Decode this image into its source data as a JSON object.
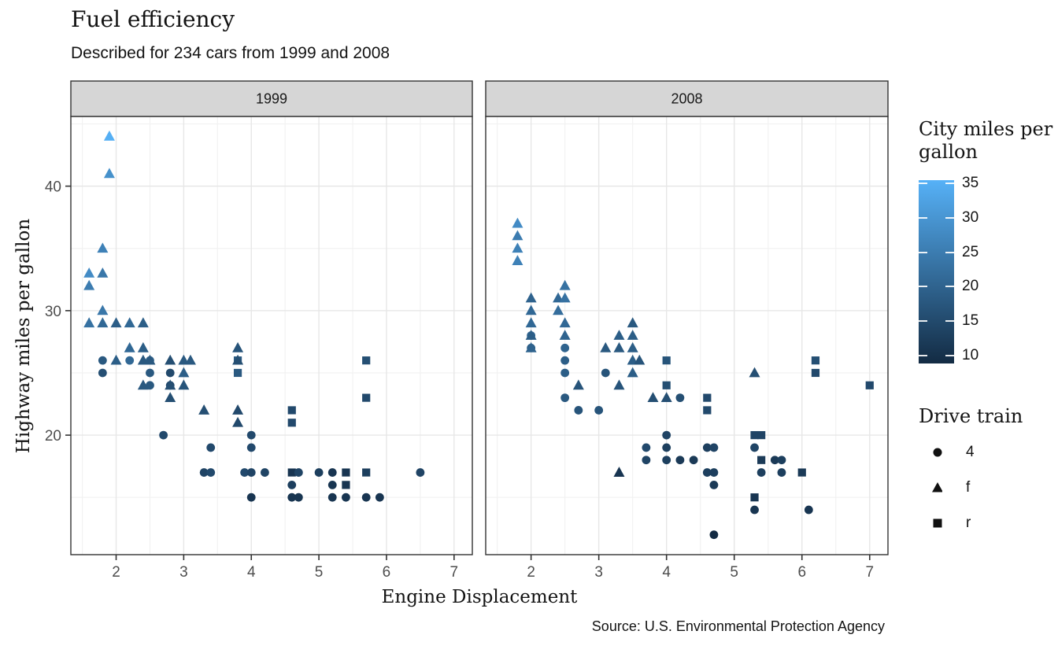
{
  "title": "Fuel efficiency",
  "subtitle": "Described for 234 cars from 1999 and 2008",
  "caption": "Source: U.S. Environmental Protection Agency",
  "chart_data": {
    "type": "scatter",
    "xlabel": "Engine Displacement",
    "ylabel": "Highway miles per gallon",
    "xlim": [
      1.33,
      7.27
    ],
    "ylim": [
      10.4,
      45.6
    ],
    "x_ticks": [
      2,
      3,
      4,
      5,
      6,
      7
    ],
    "x_minor": [
      1.5,
      2.5,
      3.5,
      4.5,
      5.5,
      6.5
    ],
    "y_ticks": [
      20,
      30,
      40
    ],
    "y_minor": [
      15,
      25,
      35,
      45
    ],
    "grid": "on",
    "colors": {
      "strip_bg": "#D6D6D6",
      "panel_border": "#333333",
      "grid_major": "#E7E7E7",
      "grid_minor": "#F2F2F2",
      "tick_label": "#4D4D4D",
      "tick_mark": "#333333",
      "shape_glyph": "#111111"
    },
    "color_legend": {
      "title": "City miles per gallon",
      "low": "#132B43",
      "high": "#56B1F7",
      "domain": [
        9,
        35.4
      ],
      "ticks": [
        35,
        30,
        25,
        20,
        15,
        10
      ]
    },
    "shape_legend": {
      "title": "Drive train",
      "items": [
        {
          "shape": "circle",
          "label": "4"
        },
        {
          "shape": "triangle",
          "label": "f"
        },
        {
          "shape": "square",
          "label": "r"
        }
      ]
    },
    "facets": [
      {
        "label": "1999",
        "series": [
          {
            "drv": "f",
            "shape": "triangle",
            "points": [
              [
                1.9,
                44,
                35
              ],
              [
                1.9,
                41,
                29
              ],
              [
                1.8,
                35,
                26
              ],
              [
                1.6,
                33,
                28
              ],
              [
                1.8,
                33,
                24
              ],
              [
                1.6,
                32,
                25
              ],
              [
                1.8,
                30,
                24
              ],
              [
                1.6,
                29,
                23
              ],
              [
                1.8,
                29,
                21
              ],
              [
                2.0,
                29,
                19
              ],
              [
                2.2,
                29,
                21
              ],
              [
                2.4,
                29,
                19
              ],
              [
                2.2,
                27,
                21
              ],
              [
                2.4,
                27,
                19
              ],
              [
                3.8,
                27,
                17
              ],
              [
                2.0,
                26,
                19
              ],
              [
                2.4,
                26,
                18
              ],
              [
                2.5,
                26,
                18
              ],
              [
                2.8,
                26,
                16
              ],
              [
                3.0,
                26,
                18
              ],
              [
                3.1,
                26,
                18
              ],
              [
                3.8,
                26,
                16
              ],
              [
                3.0,
                25,
                19
              ],
              [
                2.4,
                24,
                18
              ],
              [
                2.8,
                24,
                16
              ],
              [
                3.0,
                24,
                17
              ],
              [
                2.8,
                23,
                16
              ],
              [
                3.3,
                22,
                16
              ],
              [
                3.8,
                22,
                15
              ],
              [
                3.8,
                21,
                15
              ]
            ]
          },
          {
            "drv": "4",
            "shape": "circle",
            "points": [
              [
                1.8,
                26,
                18
              ],
              [
                2.2,
                26,
                21
              ],
              [
                2.5,
                26,
                19
              ],
              [
                1.8,
                25,
                16
              ],
              [
                2.5,
                25,
                18
              ],
              [
                2.8,
                25,
                15
              ],
              [
                2.5,
                24,
                18
              ],
              [
                2.8,
                24,
                15
              ],
              [
                2.7,
                20,
                15
              ],
              [
                4.0,
                20,
                15
              ],
              [
                3.4,
                19,
                15
              ],
              [
                4.0,
                19,
                15
              ],
              [
                3.3,
                17,
                14
              ],
              [
                3.4,
                17,
                15
              ],
              [
                3.9,
                17,
                15
              ],
              [
                4.0,
                17,
                14
              ],
              [
                4.2,
                17,
                14
              ],
              [
                4.7,
                17,
                14
              ],
              [
                5.0,
                17,
                13
              ],
              [
                5.2,
                17,
                11
              ],
              [
                6.5,
                17,
                14
              ],
              [
                4.6,
                16,
                13
              ],
              [
                5.2,
                16,
                11
              ],
              [
                4.0,
                15,
                11
              ],
              [
                4.6,
                15,
                11
              ],
              [
                4.7,
                15,
                11
              ],
              [
                5.2,
                15,
                11
              ],
              [
                5.4,
                15,
                11
              ],
              [
                5.7,
                15,
                11
              ],
              [
                5.9,
                15,
                11
              ]
            ]
          },
          {
            "drv": "r",
            "shape": "square",
            "points": [
              [
                3.8,
                26,
                18
              ],
              [
                3.8,
                25,
                18
              ],
              [
                5.7,
                26,
                16
              ],
              [
                5.7,
                23,
                15
              ],
              [
                4.6,
                22,
                15
              ],
              [
                4.6,
                21,
                15
              ],
              [
                4.6,
                17,
                11
              ],
              [
                5.4,
                17,
                11
              ],
              [
                5.7,
                17,
                13
              ],
              [
                5.4,
                16,
                11
              ]
            ]
          }
        ]
      },
      {
        "label": "2008",
        "series": [
          {
            "drv": "f",
            "shape": "triangle",
            "points": [
              [
                1.8,
                37,
                28
              ],
              [
                1.8,
                36,
                25
              ],
              [
                1.8,
                35,
                26
              ],
              [
                1.8,
                34,
                26
              ],
              [
                2.5,
                32,
                23
              ],
              [
                2.0,
                31,
                20
              ],
              [
                2.4,
                31,
                21
              ],
              [
                2.5,
                31,
                23
              ],
              [
                2.0,
                30,
                21
              ],
              [
                2.4,
                30,
                22
              ],
              [
                2.0,
                29,
                21
              ],
              [
                2.5,
                29,
                21
              ],
              [
                3.5,
                29,
                18
              ],
              [
                2.0,
                28,
                19
              ],
              [
                2.5,
                28,
                20
              ],
              [
                3.3,
                28,
                19
              ],
              [
                3.5,
                28,
                19
              ],
              [
                2.0,
                27,
                20
              ],
              [
                3.1,
                27,
                18
              ],
              [
                3.3,
                27,
                18
              ],
              [
                3.5,
                27,
                19
              ],
              [
                3.5,
                26,
                19
              ],
              [
                3.6,
                26,
                17
              ],
              [
                3.5,
                25,
                19
              ],
              [
                5.3,
                25,
                16
              ],
              [
                2.7,
                24,
                17
              ],
              [
                3.3,
                24,
                17
              ],
              [
                3.8,
                23,
                16
              ],
              [
                4.0,
                23,
                16
              ],
              [
                3.3,
                17,
                11
              ]
            ]
          },
          {
            "drv": "4",
            "shape": "circle",
            "points": [
              [
                2.0,
                28,
                20
              ],
              [
                2.0,
                27,
                19
              ],
              [
                2.5,
                27,
                20
              ],
              [
                2.5,
                26,
                19
              ],
              [
                2.5,
                25,
                19
              ],
              [
                3.1,
                25,
                17
              ],
              [
                2.5,
                23,
                18
              ],
              [
                2.7,
                22,
                17
              ],
              [
                3.0,
                22,
                17
              ],
              [
                4.2,
                23,
                16
              ],
              [
                4.0,
                20,
                14
              ],
              [
                3.7,
                19,
                15
              ],
              [
                4.0,
                19,
                13
              ],
              [
                4.6,
                19,
                13
              ],
              [
                4.7,
                19,
                14
              ],
              [
                5.3,
                19,
                14
              ],
              [
                3.7,
                18,
                14
              ],
              [
                4.0,
                18,
                13
              ],
              [
                4.2,
                18,
                12
              ],
              [
                4.4,
                18,
                12
              ],
              [
                5.6,
                18,
                12
              ],
              [
                5.7,
                18,
                13
              ],
              [
                4.6,
                17,
                13
              ],
              [
                4.7,
                17,
                13
              ],
              [
                5.4,
                17,
                13
              ],
              [
                5.7,
                17,
                13
              ],
              [
                4.7,
                16,
                12
              ],
              [
                5.3,
                14,
                11
              ],
              [
                6.1,
                14,
                11
              ],
              [
                4.7,
                12,
                9
              ]
            ]
          },
          {
            "drv": "r",
            "shape": "square",
            "points": [
              [
                4.0,
                26,
                17
              ],
              [
                4.0,
                24,
                16
              ],
              [
                4.6,
                23,
                15
              ],
              [
                4.6,
                22,
                15
              ],
              [
                6.2,
                26,
                16
              ],
              [
                6.2,
                25,
                15
              ],
              [
                7.0,
                24,
                15
              ],
              [
                5.3,
                20,
                14
              ],
              [
                5.4,
                20,
                14
              ],
              [
                5.4,
                18,
                12
              ],
              [
                6.0,
                17,
                12
              ],
              [
                5.3,
                15,
                11
              ]
            ]
          }
        ]
      }
    ]
  }
}
